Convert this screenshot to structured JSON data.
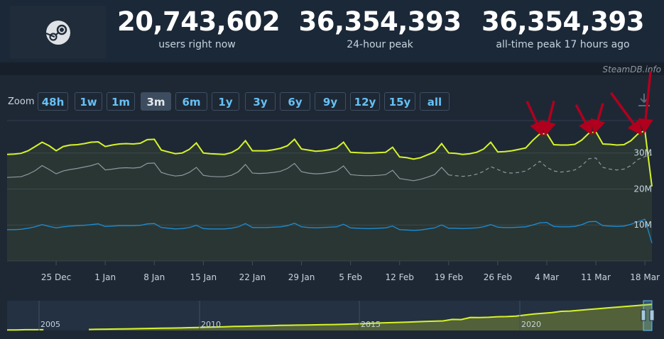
{
  "header": {
    "logo_name": "steam-icon",
    "stats": [
      {
        "value": "20,743,602",
        "label": "users right now"
      },
      {
        "value": "36,354,393",
        "label": "24-hour peak"
      },
      {
        "value": "36,354,393",
        "label": "all-time peak 17 hours ago"
      }
    ]
  },
  "credit": "SteamDB.info",
  "zoom": {
    "label": "Zoom",
    "options": [
      "48h",
      "1w",
      "1m",
      "3m",
      "6m",
      "1y",
      "3y",
      "6y",
      "9y",
      "12y",
      "15y",
      "all"
    ],
    "active": "3m"
  },
  "colors": {
    "players": "#d7f32a",
    "previous": "#8f98a0",
    "twitch": "#1c8cd4",
    "arrows": "#b0001e",
    "background": "#1e2835"
  },
  "chart_data": {
    "type": "line",
    "x_labels": [
      "25 Dec",
      "1 Jan",
      "8 Jan",
      "15 Jan",
      "22 Jan",
      "29 Jan",
      "5 Feb",
      "12 Feb",
      "19 Feb",
      "26 Feb",
      "4 Mar",
      "11 Mar",
      "18 Mar"
    ],
    "y_ticks": [
      "10M",
      "20M",
      "30M"
    ],
    "ylim": [
      0,
      39000000
    ],
    "grid": true,
    "x": [
      "2023-12-18",
      "2023-12-19",
      "2023-12-20",
      "2023-12-21",
      "2023-12-22",
      "2023-12-23",
      "2023-12-24",
      "2023-12-25",
      "2023-12-26",
      "2023-12-27",
      "2023-12-28",
      "2023-12-29",
      "2023-12-30",
      "2023-12-31",
      "2024-01-01",
      "2024-01-02",
      "2024-01-03",
      "2024-01-04",
      "2024-01-05",
      "2024-01-06",
      "2024-01-07",
      "2024-01-08",
      "2024-01-09",
      "2024-01-10",
      "2024-01-11",
      "2024-01-12",
      "2024-01-13",
      "2024-01-14",
      "2024-01-15",
      "2024-01-16",
      "2024-01-17",
      "2024-01-18",
      "2024-01-19",
      "2024-01-20",
      "2024-01-21",
      "2024-01-22",
      "2024-01-23",
      "2024-01-24",
      "2024-01-25",
      "2024-01-26",
      "2024-01-27",
      "2024-01-28",
      "2024-01-29",
      "2024-01-30",
      "2024-01-31",
      "2024-02-01",
      "2024-02-02",
      "2024-02-03",
      "2024-02-04",
      "2024-02-05",
      "2024-02-06",
      "2024-02-07",
      "2024-02-08",
      "2024-02-09",
      "2024-02-10",
      "2024-02-11",
      "2024-02-12",
      "2024-02-13",
      "2024-02-14",
      "2024-02-15",
      "2024-02-16",
      "2024-02-17",
      "2024-02-18",
      "2024-02-19",
      "2024-02-20",
      "2024-02-21",
      "2024-02-22",
      "2024-02-23",
      "2024-02-24",
      "2024-02-25",
      "2024-02-26",
      "2024-02-27",
      "2024-02-28",
      "2024-02-29",
      "2024-03-01",
      "2024-03-02",
      "2024-03-03",
      "2024-03-04",
      "2024-03-05",
      "2024-03-06",
      "2024-03-07",
      "2024-03-08",
      "2024-03-09",
      "2024-03-10",
      "2024-03-11",
      "2024-03-12",
      "2024-03-13",
      "2024-03-14",
      "2024-03-15",
      "2024-03-16",
      "2024-03-17",
      "2024-03-18",
      "2024-03-19"
    ],
    "series": [
      {
        "values": [
          29.6,
          29.7,
          29.9,
          30.6,
          31.8,
          33.0,
          32.0,
          30.6,
          31.8,
          32.2,
          32.3,
          32.6,
          33.0,
          33.1,
          31.8,
          32.2,
          32.5,
          32.6,
          32.5,
          32.7,
          33.7,
          33.8,
          30.8,
          30.3,
          29.8,
          30.0,
          31.0,
          32.8,
          30.0,
          29.8,
          29.7,
          29.6,
          30.1,
          31.2,
          33.4,
          30.6,
          30.6,
          30.6,
          30.9,
          31.3,
          32.0,
          33.8,
          31.1,
          30.8,
          30.5,
          30.6,
          30.9,
          31.4,
          33.0,
          30.2,
          30.1,
          30.0,
          30.0,
          30.1,
          30.2,
          31.6,
          28.9,
          28.7,
          28.3,
          28.7,
          29.5,
          30.3,
          32.6,
          30.0,
          29.9,
          29.6,
          29.8,
          30.2,
          31.1,
          33.0,
          30.3,
          30.4,
          30.6,
          31.0,
          31.4,
          33.5,
          35.3,
          35.4,
          32.3,
          32.2,
          32.2,
          32.4,
          33.6,
          35.5,
          35.9,
          32.5,
          32.4,
          32.2,
          32.3,
          33.4,
          35.3,
          36.2,
          20.7
        ]
      },
      {
        "values": [
          23.2,
          23.3,
          23.4,
          24.1,
          25.1,
          26.5,
          25.4,
          24.2,
          25.0,
          25.4,
          25.7,
          26.1,
          26.5,
          27.1,
          25.3,
          25.5,
          25.8,
          25.9,
          25.8,
          26.0,
          27.1,
          27.2,
          24.6,
          24.0,
          23.6,
          23.8,
          24.6,
          26.0,
          23.8,
          23.5,
          23.4,
          23.4,
          23.8,
          24.8,
          26.8,
          24.4,
          24.3,
          24.4,
          24.6,
          24.9,
          25.7,
          27.1,
          24.8,
          24.4,
          24.2,
          24.3,
          24.6,
          25.0,
          26.4,
          24.0,
          23.8,
          23.7,
          23.7,
          23.8,
          24.0,
          25.2,
          22.9,
          22.6,
          22.3,
          22.7,
          23.3,
          24.0,
          26.0,
          23.9,
          23.7,
          23.5,
          23.7,
          24.1,
          24.9,
          26.2,
          25.4,
          24.6,
          24.4,
          24.6,
          25.0,
          26.2,
          27.7,
          26.0,
          25.0,
          24.7,
          24.9,
          25.3,
          26.5,
          28.4,
          28.6,
          26.0,
          25.5,
          25.3,
          25.5,
          26.5,
          28.2,
          29.0,
          29.5
        ]
      },
      {
        "values": [
          8.7,
          8.7,
          8.8,
          9.1,
          9.5,
          10.1,
          9.6,
          9.2,
          9.5,
          9.7,
          9.8,
          9.9,
          10.1,
          10.3,
          9.6,
          9.7,
          9.8,
          9.8,
          9.8,
          9.9,
          10.3,
          10.4,
          9.3,
          9.1,
          8.9,
          9.0,
          9.3,
          9.9,
          9.0,
          8.9,
          8.9,
          8.9,
          9.1,
          9.5,
          10.4,
          9.3,
          9.3,
          9.3,
          9.4,
          9.5,
          9.8,
          10.5,
          9.5,
          9.3,
          9.2,
          9.3,
          9.4,
          9.5,
          10.2,
          9.2,
          9.1,
          9.0,
          9.0,
          9.1,
          9.2,
          9.7,
          8.7,
          8.6,
          8.5,
          8.6,
          8.9,
          9.2,
          10.0,
          9.1,
          9.1,
          9.0,
          9.1,
          9.2,
          9.5,
          10.1,
          9.4,
          9.3,
          9.3,
          9.4,
          9.5,
          10.0,
          10.6,
          10.7,
          9.6,
          9.5,
          9.5,
          9.6,
          10.1,
          10.9,
          11.0,
          9.8,
          9.7,
          9.6,
          9.7,
          10.2,
          10.9,
          11.6,
          5.0
        ]
      }
    ],
    "unit": "millions"
  },
  "navigator": {
    "year_labels": [
      "2005",
      "2010",
      "2015",
      "2020"
    ],
    "values": [
      0.4,
      0.4,
      0.5,
      0.5,
      0.5,
      null,
      null,
      null,
      null,
      0.7,
      0.8,
      0.9,
      1.0,
      1.1,
      1.2,
      1.3,
      1.4,
      1.5,
      1.6,
      1.7,
      1.9,
      2.0,
      2.2,
      2.3,
      2.5,
      2.7,
      2.8,
      3.0,
      3.1,
      3.2,
      3.4,
      3.5,
      3.6,
      3.7,
      3.8,
      3.9,
      4.0,
      4.1,
      4.3,
      4.5,
      4.8,
      5.0,
      5.2,
      5.4,
      5.6,
      5.8,
      6.0,
      6.2,
      6.4,
      7.4,
      7.3,
      8.7,
      8.6,
      8.8,
      9.2,
      9.3,
      9.6,
      10.3,
      11.0,
      11.5,
      12.0,
      12.8,
      13.0,
      13.5,
      14.0,
      14.5,
      15.0,
      15.5,
      16.0,
      16.5,
      17.0,
      17.5
    ]
  }
}
